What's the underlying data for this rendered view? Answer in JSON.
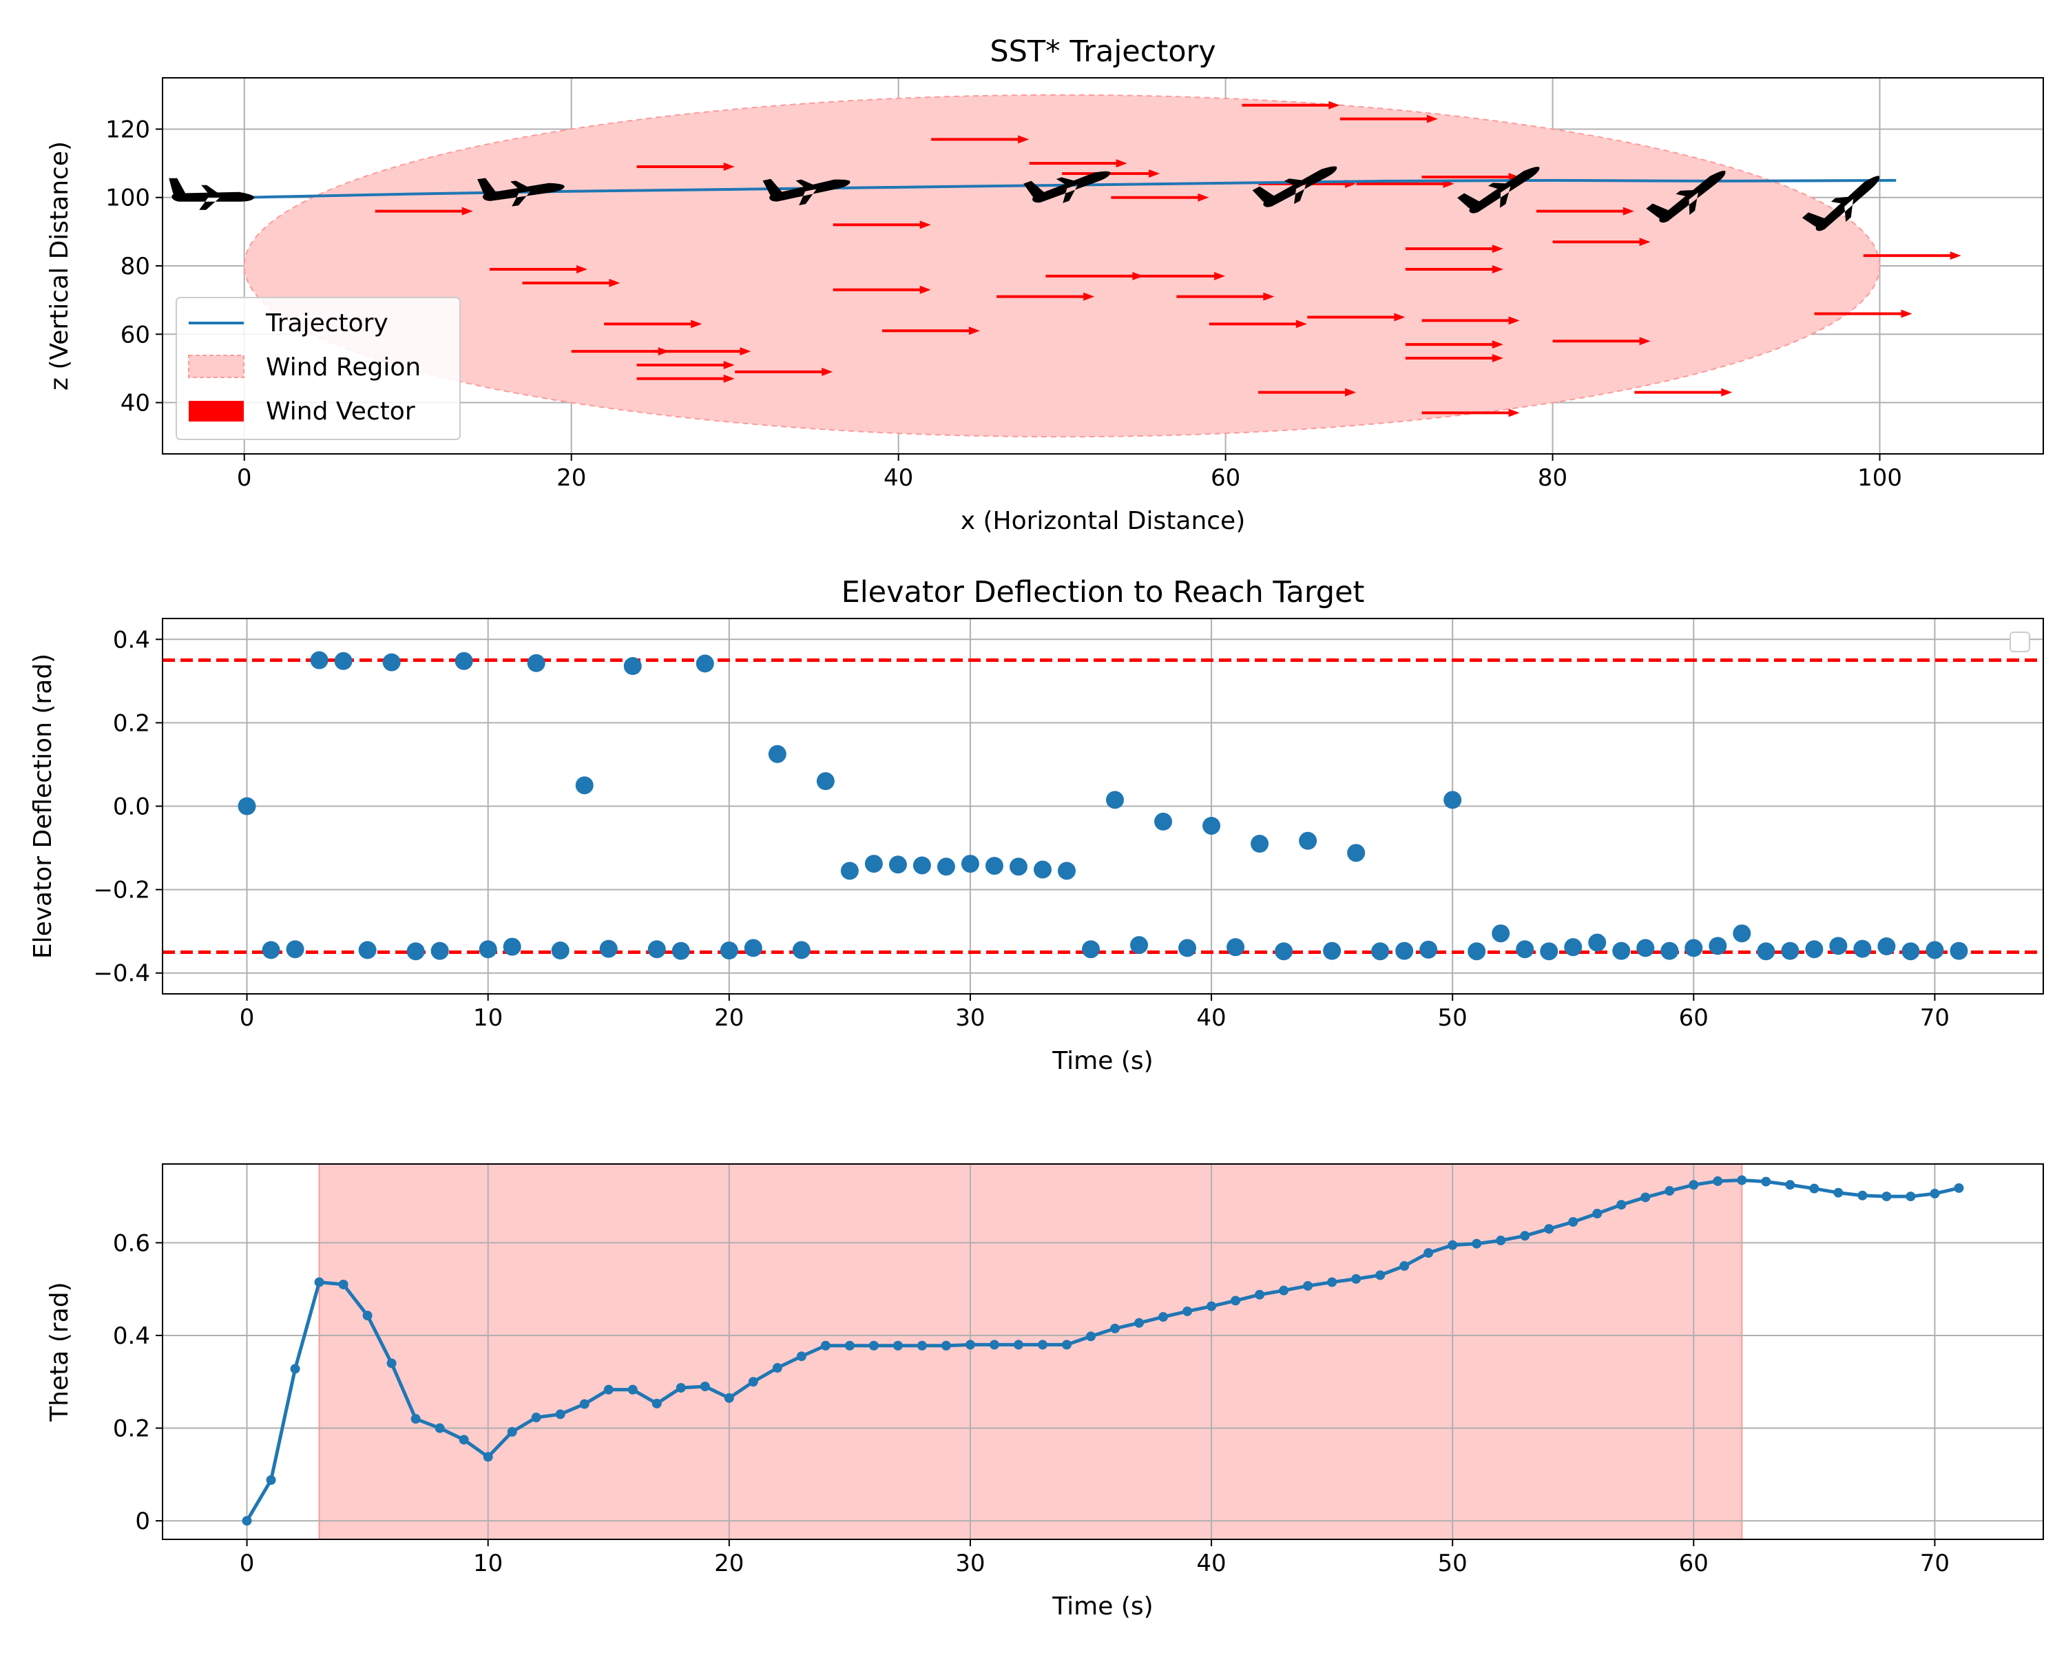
{
  "chart_data": [
    {
      "type": "line",
      "title": "SST* Trajectory",
      "xlabel": "x (Horizontal Distance)",
      "ylabel": "z (Vertical Distance)",
      "xlim": [
        -5,
        110
      ],
      "ylim": [
        25,
        135
      ],
      "xticks": [
        0,
        20,
        40,
        60,
        80,
        100
      ],
      "yticks": [
        40,
        60,
        80,
        100,
        120
      ],
      "grid": true,
      "legend_position": "lower-left",
      "legend": [
        "Trajectory",
        "Wind Region",
        "Wind Vector"
      ],
      "colors": {
        "trajectory": "#1f77b4",
        "wind_region": "#ffcccc",
        "wind_vector": "#ff0000",
        "aircraft": "#000000"
      },
      "series": [
        {
          "name": "Trajectory",
          "x": [
            0,
            10,
            20,
            30,
            40,
            50,
            60,
            70,
            80,
            90,
            101
          ],
          "y": [
            100,
            101,
            101.8,
            102.4,
            103,
            103.6,
            104.2,
            104.8,
            105,
            104.8,
            105
          ]
        }
      ],
      "wind_region": {
        "center": [
          50,
          80
        ],
        "x_radius": 50,
        "z_radius": 50
      },
      "wind_vectors": [
        [
          22,
          63
        ],
        [
          8,
          96
        ],
        [
          24,
          109
        ],
        [
          36,
          92
        ],
        [
          42,
          117
        ],
        [
          48,
          110
        ],
        [
          50,
          107
        ],
        [
          61,
          127
        ],
        [
          67,
          123
        ],
        [
          15,
          79
        ],
        [
          17,
          75
        ],
        [
          36,
          73
        ],
        [
          46,
          71
        ],
        [
          49,
          77
        ],
        [
          53,
          100
        ],
        [
          54,
          77
        ],
        [
          57,
          71
        ],
        [
          59,
          63
        ],
        [
          65,
          65
        ],
        [
          68,
          104
        ],
        [
          71,
          85
        ],
        [
          71,
          79
        ],
        [
          72,
          64
        ],
        [
          72,
          106
        ],
        [
          79,
          96
        ],
        [
          80,
          87
        ],
        [
          71,
          57
        ],
        [
          71,
          53
        ],
        [
          80,
          58
        ],
        [
          62,
          43
        ],
        [
          85,
          43
        ],
        [
          72,
          37
        ],
        [
          24,
          51
        ],
        [
          24,
          47
        ],
        [
          30,
          49
        ],
        [
          39,
          61
        ],
        [
          62,
          104
        ],
        [
          99,
          83
        ],
        [
          96,
          66
        ],
        [
          20,
          55
        ],
        [
          25,
          55
        ]
      ],
      "aircraft": [
        {
          "x": -2,
          "z": 100,
          "pitch_deg": 0
        },
        {
          "x": 17,
          "z": 101.5,
          "pitch_deg": 8
        },
        {
          "x": 34.5,
          "z": 102,
          "pitch_deg": 12
        },
        {
          "x": 50.5,
          "z": 103,
          "pitch_deg": 20
        },
        {
          "x": 64.5,
          "z": 103,
          "pitch_deg": 28
        },
        {
          "x": 77,
          "z": 102,
          "pitch_deg": 33
        },
        {
          "x": 88.5,
          "z": 100,
          "pitch_deg": 38
        },
        {
          "x": 98,
          "z": 98,
          "pitch_deg": 41
        }
      ]
    },
    {
      "type": "scatter",
      "title": "Elevator Deflection to Reach Target",
      "xlabel": "Time (s)",
      "ylabel": "Elevator Deflection (rad)",
      "xlim": [
        -3.5,
        74.5
      ],
      "ylim": [
        -0.45,
        0.45
      ],
      "xticks": [
        0,
        10,
        20,
        30,
        40,
        50,
        60,
        70
      ],
      "yticks": [
        -0.4,
        -0.2,
        0.0,
        0.2,
        0.4
      ],
      "ytick_labels": [
        "−0.4",
        "−0.2",
        "0.0",
        "0.2",
        "0.4"
      ],
      "grid": true,
      "legend_position": "top-right",
      "limit_lines": [
        0.35,
        -0.35
      ],
      "colors": {
        "points": "#1f77b4",
        "limit": "#ff0000"
      },
      "x": [
        0,
        1,
        2,
        3,
        4,
        5,
        6,
        7,
        8,
        9,
        10,
        11,
        12,
        13,
        14,
        15,
        16,
        17,
        18,
        19,
        20,
        21,
        22,
        23,
        24,
        25,
        26,
        27,
        28,
        29,
        30,
        31,
        32,
        33,
        34,
        35,
        36,
        37,
        38,
        39,
        40,
        41,
        42,
        43,
        44,
        45,
        46,
        47,
        48,
        49,
        50,
        51,
        52,
        53,
        54,
        55,
        56,
        57,
        58,
        59,
        60,
        61,
        62,
        63,
        64,
        65,
        66,
        67,
        68,
        69,
        70,
        71
      ],
      "y": [
        0.0,
        -0.345,
        -0.343,
        0.35,
        0.348,
        -0.345,
        0.345,
        -0.348,
        -0.347,
        0.348,
        -0.343,
        -0.337,
        0.343,
        -0.346,
        0.05,
        -0.342,
        0.336,
        -0.343,
        -0.347,
        0.342,
        -0.346,
        -0.34,
        0.125,
        -0.345,
        0.06,
        -0.155,
        -0.138,
        -0.14,
        -0.142,
        -0.145,
        -0.138,
        -0.143,
        -0.145,
        -0.152,
        -0.155,
        -0.343,
        0.015,
        -0.333,
        -0.037,
        -0.34,
        -0.047,
        -0.338,
        -0.09,
        -0.348,
        -0.083,
        -0.347,
        -0.112,
        -0.348,
        -0.347,
        -0.344,
        0.015,
        -0.348,
        -0.305,
        -0.343,
        -0.348,
        -0.338,
        -0.327,
        -0.347,
        -0.34,
        -0.347,
        -0.34,
        -0.335,
        -0.305,
        -0.348,
        -0.347,
        -0.343,
        -0.335,
        -0.342,
        -0.336,
        -0.348,
        -0.345,
        -0.347
      ]
    },
    {
      "type": "line",
      "title": "",
      "xlabel": "Time (s)",
      "ylabel": "Theta (rad)",
      "xlim": [
        -3.5,
        74.5
      ],
      "ylim": [
        -0.04,
        0.77
      ],
      "xticks": [
        0,
        10,
        20,
        30,
        40,
        50,
        60,
        70
      ],
      "yticks": [
        0.0,
        0.2,
        0.4,
        0.6
      ],
      "grid": true,
      "shaded_span": [
        3,
        62
      ],
      "colors": {
        "line": "#1f77b4",
        "span": "#ffcccc"
      },
      "x": [
        0,
        1,
        2,
        3,
        4,
        5,
        6,
        7,
        8,
        9,
        10,
        11,
        12,
        13,
        14,
        15,
        16,
        17,
        18,
        19,
        20,
        21,
        22,
        23,
        24,
        25,
        26,
        27,
        28,
        29,
        30,
        31,
        32,
        33,
        34,
        35,
        36,
        37,
        38,
        39,
        40,
        41,
        42,
        43,
        44,
        45,
        46,
        47,
        48,
        49,
        50,
        51,
        52,
        53,
        54,
        55,
        56,
        57,
        58,
        59,
        60,
        61,
        62,
        63,
        64,
        65,
        66,
        67,
        68,
        69,
        70,
        71
      ],
      "y": [
        0.0,
        0.088,
        0.328,
        0.515,
        0.51,
        0.443,
        0.34,
        0.22,
        0.2,
        0.175,
        0.138,
        0.192,
        0.223,
        0.23,
        0.252,
        0.283,
        0.283,
        0.253,
        0.287,
        0.29,
        0.265,
        0.3,
        0.33,
        0.355,
        0.378,
        0.378,
        0.378,
        0.378,
        0.378,
        0.378,
        0.38,
        0.38,
        0.38,
        0.38,
        0.38,
        0.398,
        0.415,
        0.427,
        0.44,
        0.452,
        0.463,
        0.475,
        0.488,
        0.497,
        0.507,
        0.515,
        0.522,
        0.53,
        0.55,
        0.578,
        0.595,
        0.598,
        0.605,
        0.615,
        0.63,
        0.645,
        0.663,
        0.682,
        0.698,
        0.712,
        0.725,
        0.733,
        0.735,
        0.732,
        0.725,
        0.717,
        0.708,
        0.702,
        0.7,
        0.7,
        0.706,
        0.718
      ]
    }
  ]
}
